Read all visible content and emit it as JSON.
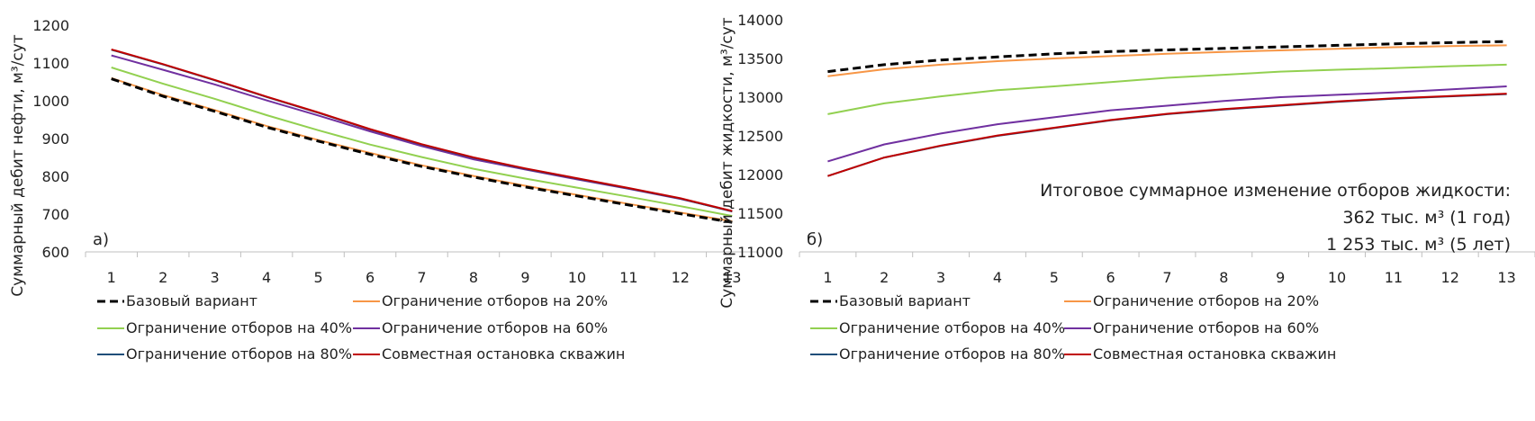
{
  "chart_data": [
    {
      "type": "line",
      "panel_label": "а)",
      "ylabel": "Суммарный дебит нефти, м³/сут",
      "ylim": [
        600,
        1200
      ],
      "y_ticks": [
        "600",
        "700",
        "800",
        "900",
        "1000",
        "1100",
        "1200"
      ],
      "x": [
        1,
        2,
        3,
        4,
        5,
        6,
        7,
        8,
        9,
        10,
        11,
        12,
        13
      ],
      "x_labels": [
        "1",
        "2",
        "3",
        "4",
        "5",
        "6",
        "7",
        "8",
        "9",
        "10",
        "11",
        "12",
        "13"
      ],
      "grid": false,
      "legend_position": "bottom",
      "series": [
        {
          "name": "Базовый вариант",
          "color": "#000000",
          "dash": true,
          "values": [
            1058,
            1012,
            972,
            930,
            893,
            858,
            826,
            798,
            772,
            748,
            724,
            701,
            678
          ]
        },
        {
          "name": "Ограничение отборов на 20%",
          "color": "#F79646",
          "dash": false,
          "values": [
            1060,
            1015,
            975,
            933,
            896,
            862,
            829,
            801,
            775,
            751,
            727,
            704,
            681
          ]
        },
        {
          "name": "Ограничение отборов на 40%",
          "color": "#92D050",
          "dash": false,
          "values": [
            1088,
            1045,
            1005,
            962,
            922,
            884,
            851,
            820,
            794,
            770,
            746,
            721,
            695
          ]
        },
        {
          "name": "Ограничение отборов на 60%",
          "color": "#7030A0",
          "dash": false,
          "values": [
            1120,
            1082,
            1043,
            1001,
            961,
            919,
            880,
            845,
            818,
            792,
            767,
            740,
            708
          ]
        },
        {
          "name": "Ограничение отборов на 80%",
          "color": "#1F4E79",
          "dash": false,
          "values": [
            1135,
            1096,
            1054,
            1010,
            968,
            924,
            884,
            849,
            820,
            794,
            768,
            741,
            707
          ]
        },
        {
          "name": "Совместная остановка скважин",
          "color": "#C00000",
          "dash": false,
          "values": [
            1136,
            1097,
            1055,
            1011,
            969,
            925,
            885,
            850,
            821,
            795,
            769,
            742,
            708
          ]
        }
      ]
    },
    {
      "type": "line",
      "panel_label": "б)",
      "ylabel": "Суммарный дебит жидкости, м³/сут",
      "ylim": [
        11000,
        14000
      ],
      "y_ticks": [
        "11000",
        "11500",
        "12000",
        "12500",
        "13000",
        "13500",
        "14000"
      ],
      "x": [
        1,
        2,
        3,
        4,
        5,
        6,
        7,
        8,
        9,
        10,
        11,
        12,
        13
      ],
      "x_labels": [
        "1",
        "2",
        "3",
        "4",
        "5",
        "6",
        "7",
        "8",
        "9",
        "10",
        "11",
        "12",
        "13"
      ],
      "grid": false,
      "legend_position": "bottom",
      "annotations": [
        "Итоговое суммарное изменение отборов жидкости:",
        "362 тыс. м³ (1 год)",
        "1 253 тыс. м³ (5 лет)"
      ],
      "series": [
        {
          "name": "Базовый вариант",
          "color": "#000000",
          "dash": true,
          "values": [
            13330,
            13420,
            13480,
            13520,
            13560,
            13590,
            13610,
            13630,
            13650,
            13670,
            13690,
            13705,
            13720
          ]
        },
        {
          "name": "Ограничение отборов на 20%",
          "color": "#F79646",
          "dash": false,
          "values": [
            13270,
            13360,
            13420,
            13465,
            13500,
            13530,
            13560,
            13585,
            13605,
            13625,
            13645,
            13660,
            13670
          ]
        },
        {
          "name": "Ограничение отборов на 40%",
          "color": "#92D050",
          "dash": false,
          "values": [
            12780,
            12920,
            13010,
            13090,
            13140,
            13195,
            13250,
            13290,
            13330,
            13355,
            13375,
            13400,
            13420
          ]
        },
        {
          "name": "Ограничение отборов на 60%",
          "color": "#7030A0",
          "dash": false,
          "values": [
            12170,
            12390,
            12530,
            12650,
            12740,
            12830,
            12890,
            12950,
            13000,
            13030,
            13060,
            13100,
            13140
          ]
        },
        {
          "name": "Ограничение отборов на 80%",
          "color": "#1F4E79",
          "dash": false,
          "values": [
            11980,
            12220,
            12370,
            12500,
            12600,
            12700,
            12780,
            12840,
            12890,
            12940,
            12980,
            13010,
            13040
          ]
        },
        {
          "name": "Совместная остановка скважин",
          "color": "#C00000",
          "dash": false,
          "values": [
            11980,
            12220,
            12375,
            12505,
            12605,
            12705,
            12785,
            12845,
            12895,
            12945,
            12985,
            13015,
            13045
          ]
        }
      ]
    }
  ]
}
